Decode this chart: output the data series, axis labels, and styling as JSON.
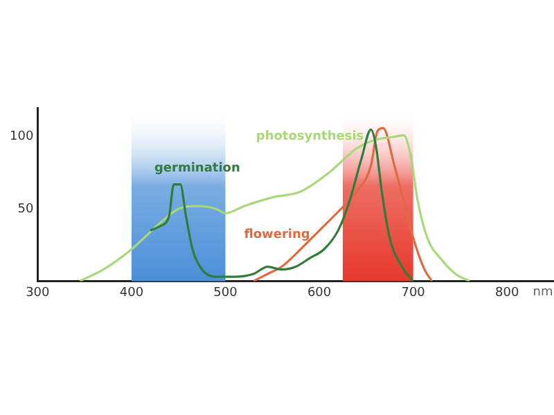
{
  "chart_data": {
    "type": "line",
    "xlabel": "nm",
    "xlim": [
      300,
      850
    ],
    "xticks": [
      300,
      400,
      500,
      600,
      700,
      800
    ],
    "ylim": [
      0,
      120
    ],
    "yticks": [
      50,
      100
    ],
    "grid": false,
    "legend": false,
    "marker": "none",
    "line_style": "solid",
    "series": [
      {
        "name": "germination",
        "color": "#2e7d3a",
        "x": [
          420,
          430,
          440,
          445,
          452,
          458,
          465,
          475,
          490,
          510,
          530,
          545,
          560,
          575,
          590,
          605,
          620,
          632,
          645,
          655,
          660,
          667,
          675,
          690,
          700
        ],
        "values": [
          35,
          38,
          45,
          67,
          67,
          45,
          22,
          8,
          3,
          3,
          5,
          10,
          8,
          10,
          16,
          22,
          35,
          55,
          85,
          105,
          95,
          60,
          30,
          8,
          0
        ]
      },
      {
        "name": "photosynthesis",
        "color": "#a8d87a",
        "x": [
          345,
          370,
          400,
          430,
          450,
          470,
          490,
          500,
          520,
          550,
          580,
          610,
          640,
          660,
          680,
          690,
          697,
          705,
          715,
          730,
          745,
          760
        ],
        "values": [
          0,
          8,
          22,
          40,
          50,
          52,
          50,
          47,
          52,
          58,
          62,
          75,
          92,
          98,
          100,
          101,
          88,
          55,
          30,
          15,
          5,
          0
        ]
      },
      {
        "name": "flowering",
        "color": "#e06a40",
        "x": [
          530,
          545,
          560,
          580,
          600,
          620,
          640,
          655,
          662,
          668,
          680,
          690,
          700,
          712,
          720
        ],
        "values": [
          0,
          5,
          10,
          22,
          35,
          48,
          62,
          80,
          104,
          106,
          80,
          55,
          30,
          8,
          0
        ]
      }
    ],
    "bands": [
      {
        "axis": "x",
        "from": 400,
        "to": 500,
        "color": "#4a8fd8"
      },
      {
        "axis": "x",
        "from": 625,
        "to": 700,
        "color": "#e8382c"
      }
    ]
  }
}
